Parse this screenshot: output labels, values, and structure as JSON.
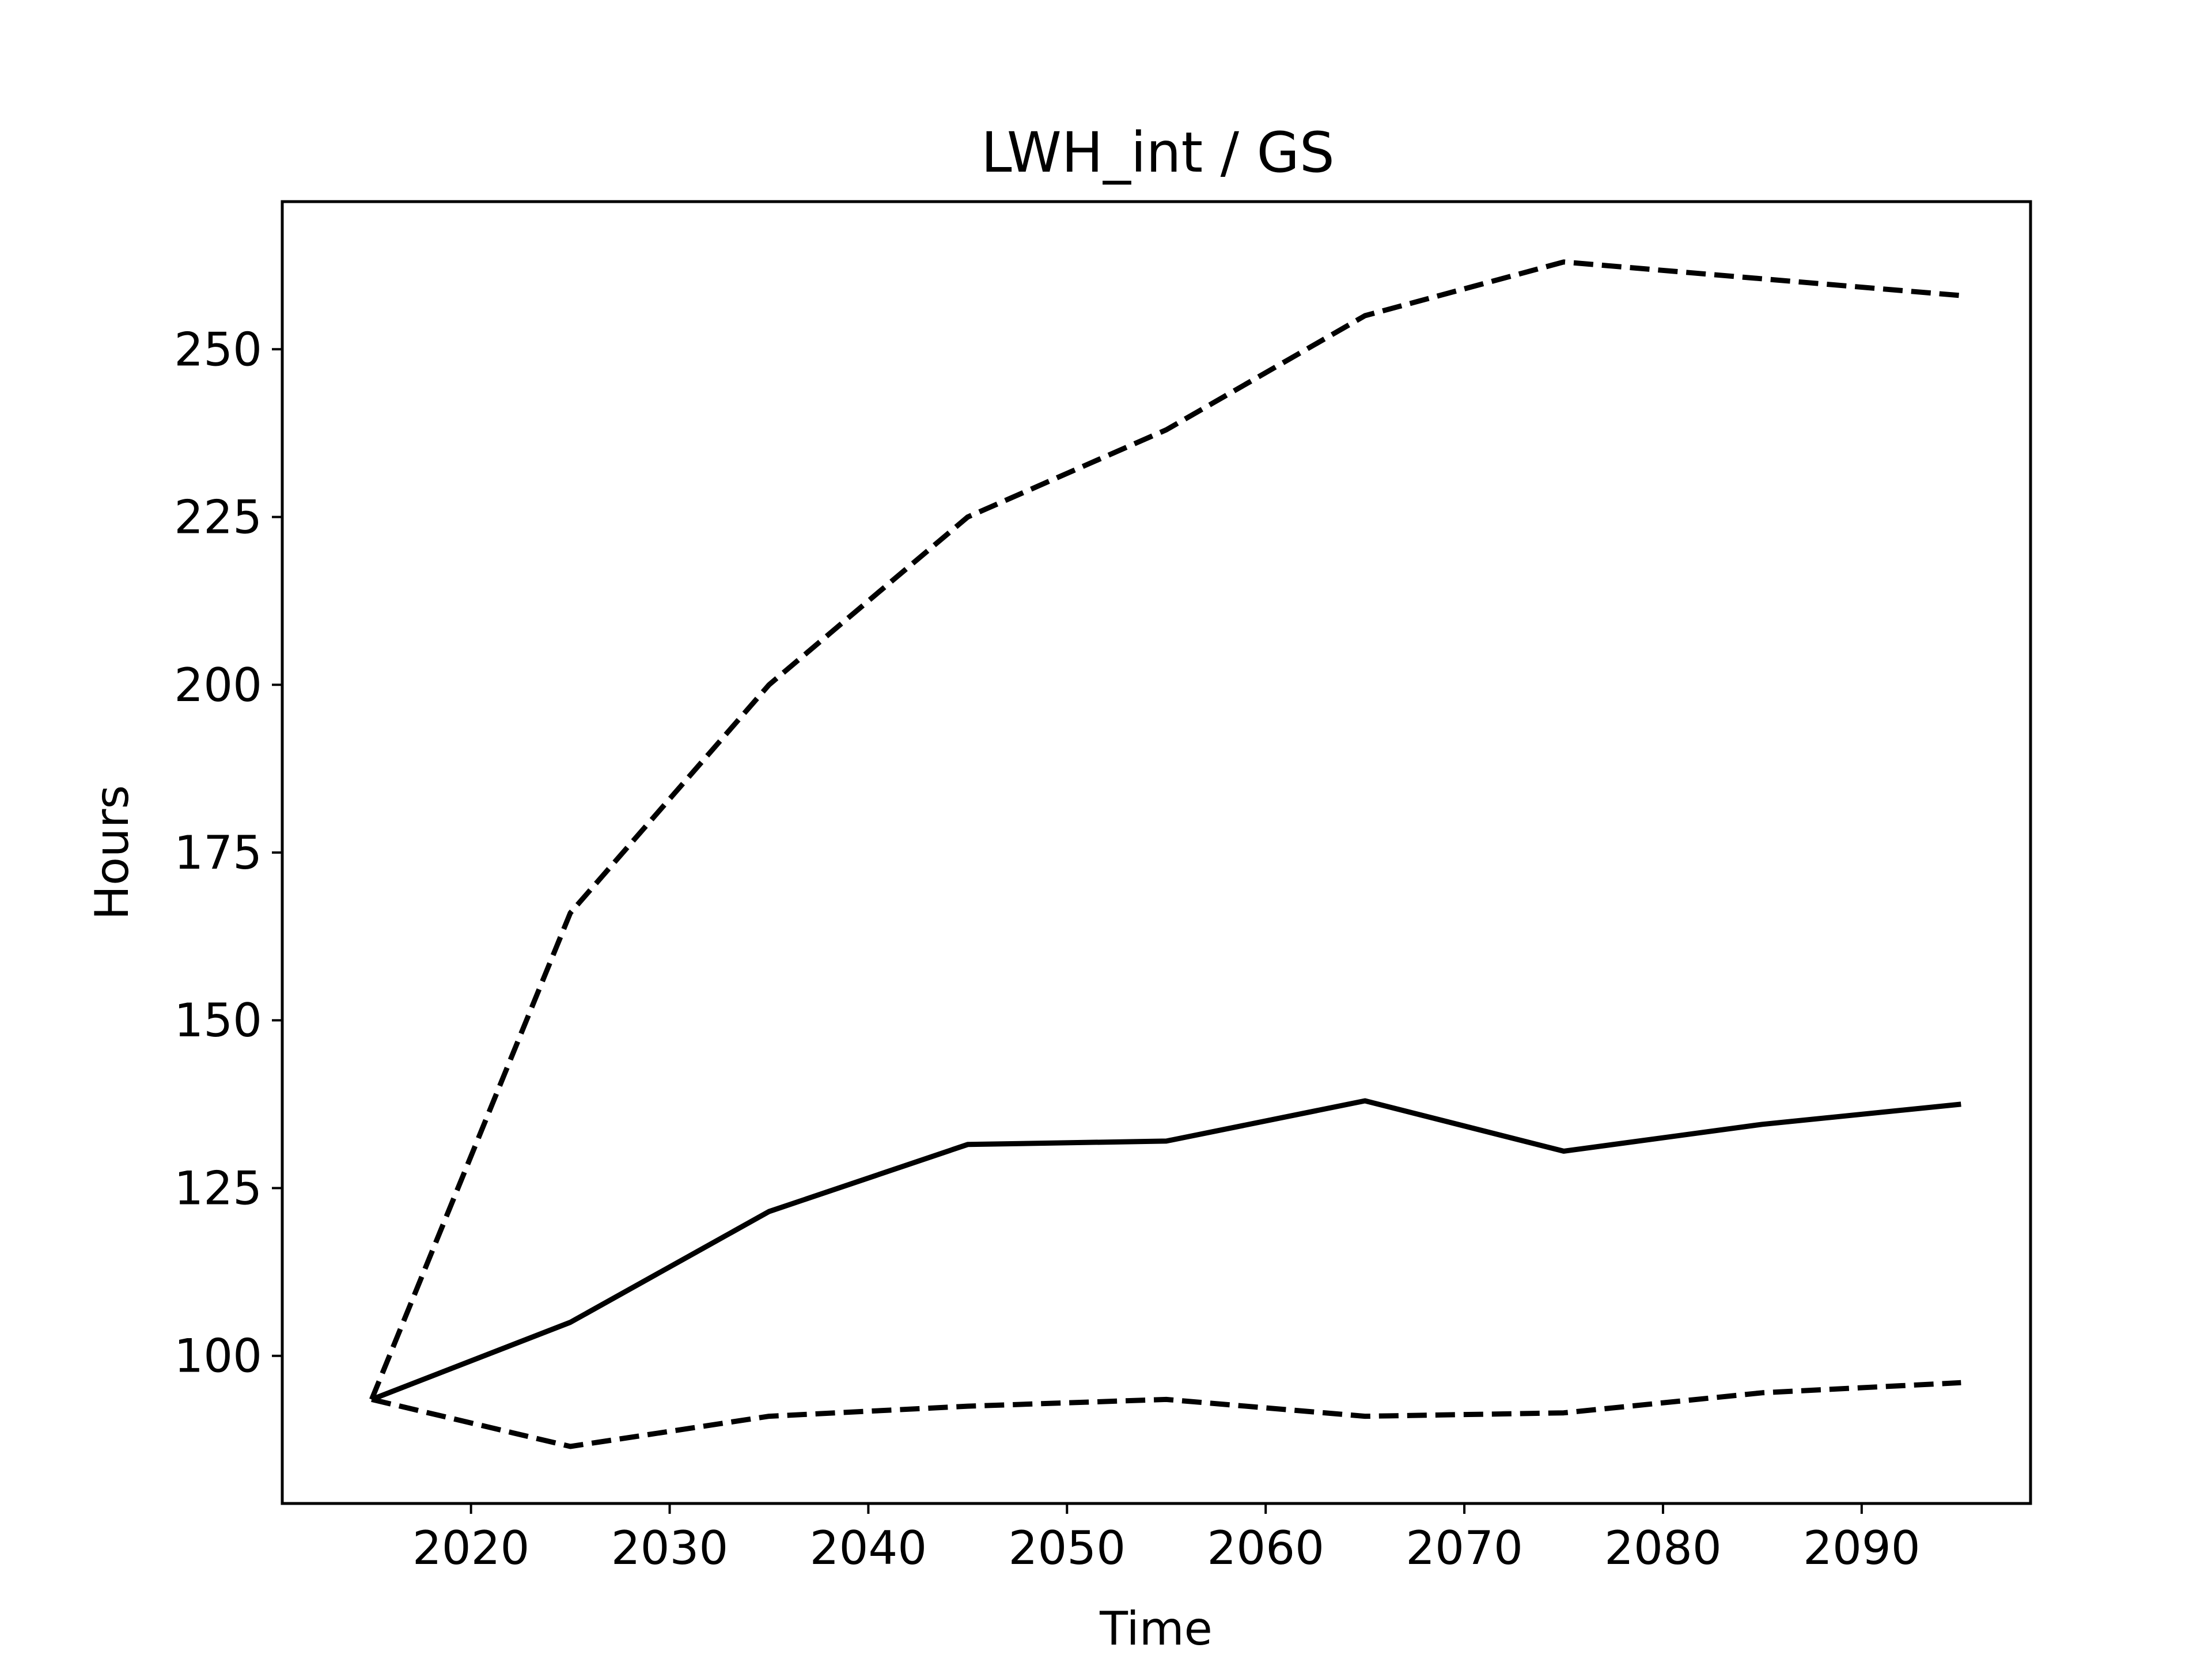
{
  "chart_data": {
    "type": "line",
    "title": "LWH_int / GS",
    "xlabel": "Time",
    "ylabel": "Hours",
    "xlim": [
      2010.5,
      2098.5
    ],
    "ylim": [
      78,
      272
    ],
    "xticks": [
      2020,
      2030,
      2040,
      2050,
      2060,
      2070,
      2080,
      2090
    ],
    "yticks": [
      100,
      125,
      150,
      175,
      200,
      225,
      250
    ],
    "grid": false,
    "x": [
      2015,
      2025,
      2035,
      2045,
      2055,
      2065,
      2075,
      2085,
      2095
    ],
    "series": [
      {
        "style": "dashed",
        "values": [
          93.5,
          166,
          200,
          225,
          238,
          255,
          263,
          260.5,
          258
        ]
      },
      {
        "style": "solid",
        "values": [
          93.5,
          105,
          121.5,
          131.5,
          132,
          138,
          130.5,
          134.5,
          137.5
        ]
      },
      {
        "style": "dashed",
        "values": [
          93.5,
          86.5,
          91,
          92.5,
          93.5,
          91,
          91.5,
          94.5,
          96
        ]
      }
    ],
    "color": "#000000"
  }
}
